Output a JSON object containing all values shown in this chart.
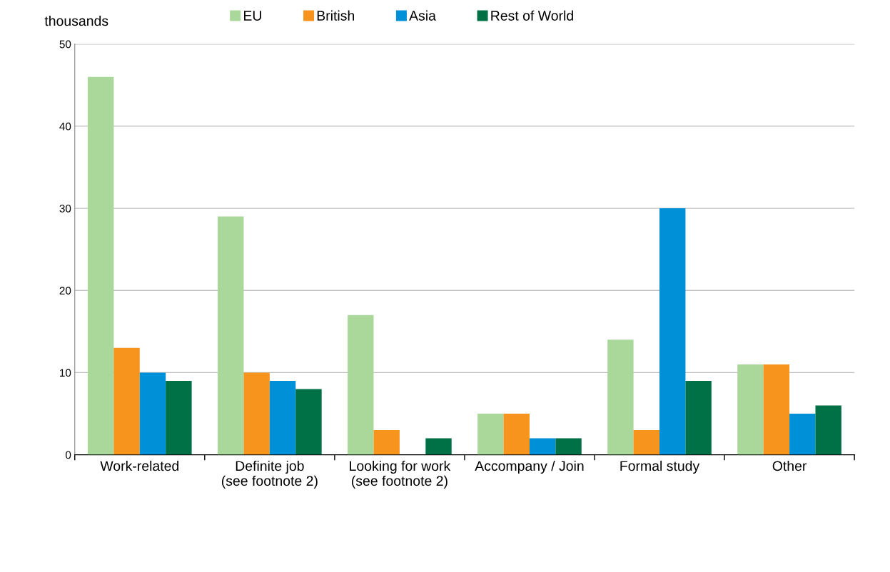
{
  "chart_data": {
    "type": "bar",
    "ylabel": "thousands",
    "categories": [
      "Work-related",
      "Definite job\n(see footnote 2)",
      "Looking for work\n(see footnote 2)",
      "Accompany / Join",
      "Formal study",
      "Other"
    ],
    "series": [
      {
        "name": "EU",
        "color": "#a9d89a",
        "values": [
          46,
          29,
          17,
          5,
          14,
          11
        ]
      },
      {
        "name": "British",
        "color": "#f7941d",
        "values": [
          13,
          10,
          3,
          5,
          3,
          11
        ]
      },
      {
        "name": "Asia",
        "color": "#0090d8",
        "values": [
          10,
          9,
          null,
          2,
          30,
          5
        ]
      },
      {
        "name": "Rest of World",
        "color": "#007047",
        "values": [
          9,
          8,
          2,
          2,
          9,
          6
        ]
      }
    ],
    "ylim": [
      0,
      50
    ],
    "yticks": [
      0,
      10,
      20,
      30,
      40,
      50
    ],
    "grid": "y",
    "legend": "top"
  }
}
